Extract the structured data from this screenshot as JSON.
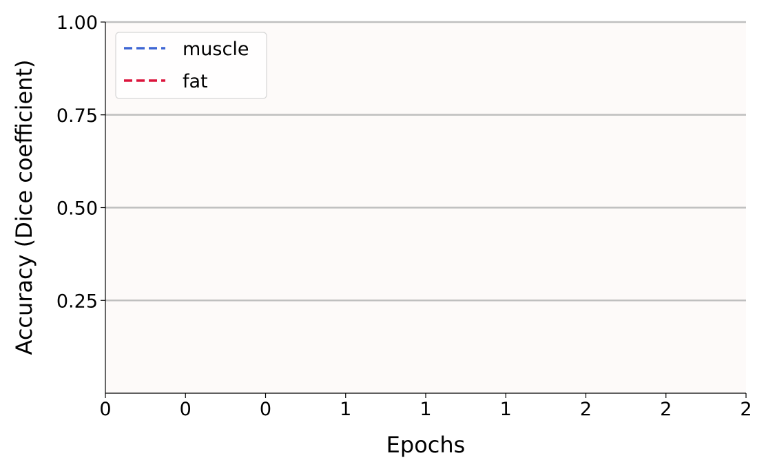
{
  "chart_data": {
    "type": "line",
    "xlabel": "Epochs",
    "ylabel": "Accuracy (Dice coefficient)",
    "x_ticks": [
      "0",
      "0",
      "0",
      "1",
      "1",
      "1",
      "2",
      "2",
      "2"
    ],
    "y_ticks": [
      "0.25",
      "0.50",
      "0.75",
      "1.00"
    ],
    "y_tick_values": [
      0.25,
      0.5,
      0.75,
      1.0
    ],
    "ylim": [
      0.0,
      1.0
    ],
    "grid": "horizontal",
    "legend_position": "top-left",
    "series": [
      {
        "name": "muscle",
        "color": "#3f66d4",
        "style": "dashed",
        "values": []
      },
      {
        "name": "fat",
        "color": "#dc143c",
        "style": "dashed",
        "values": []
      }
    ],
    "colors": {
      "plot_background": "#fdfaf9",
      "grid": "#bfbfbf"
    }
  }
}
